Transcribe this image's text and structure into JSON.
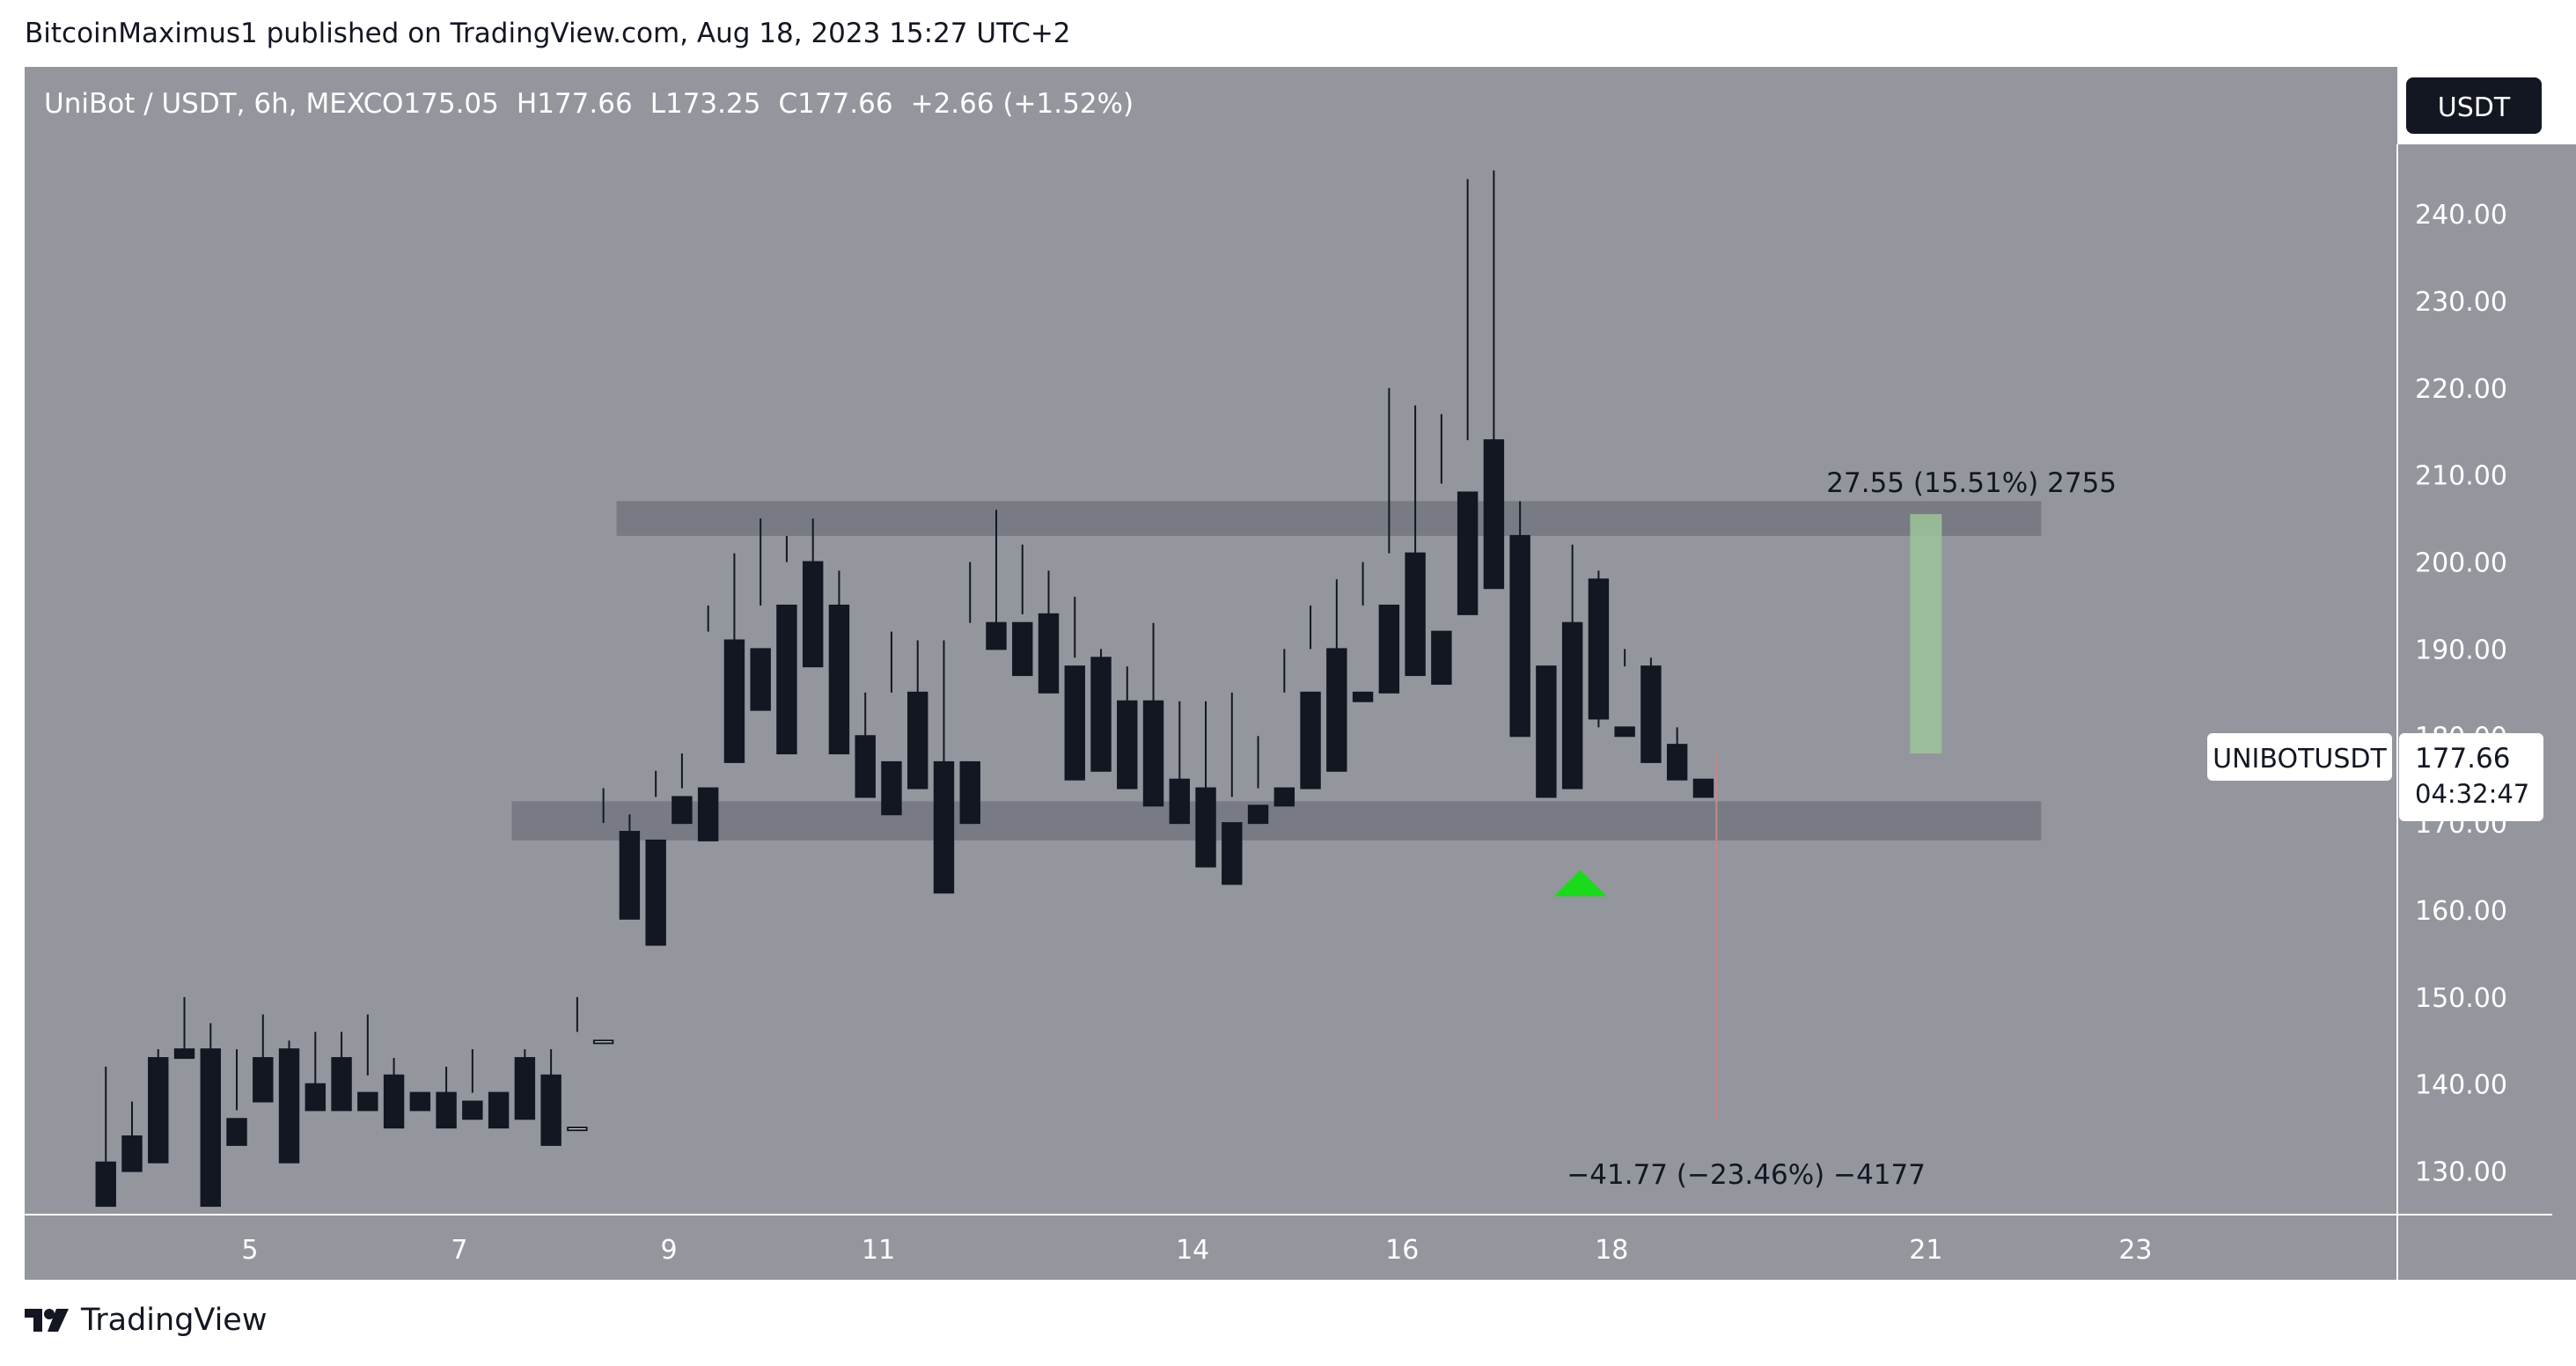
{
  "header": {
    "published_by": "BitcoinMaximus1 published on TradingView.com, Aug 18, 2023 15:27 UTC+2"
  },
  "legend": {
    "symbol": "UniBot / USDT, 6h, MEXC",
    "o_label": "O",
    "o_value": "175.05",
    "h_label": "H",
    "h_value": "177.66",
    "l_label": "L",
    "l_value": "173.25",
    "c_label": "C",
    "c_value": "177.66",
    "change": "+2.66 (+1.52%)"
  },
  "currency_button": "USDT",
  "price_tag": {
    "symbol": "UNIBOTUSDT",
    "price": "177.66",
    "countdown": "04:32:47"
  },
  "footer": {
    "brand": "TradingView",
    "logo_icon": "tradingview-logo-icon"
  },
  "colors": {
    "plot_bg": "#94969e",
    "axis_bg": "#ffffff",
    "bull": "#ffffff",
    "bear": "#131722",
    "zone": "#6f727a",
    "up_arrow": "#1bd91b",
    "target_bar": "#9ec49a",
    "stop_line": "#c9868a"
  },
  "chart_data": {
    "type": "candlestick",
    "title": "UniBot / USDT, 6h, MEXC",
    "ylim": [
      125,
      248
    ],
    "y_ticks": [
      "130.00",
      "140.00",
      "150.00",
      "160.00",
      "170.00",
      "180.00",
      "190.00",
      "200.00",
      "210.00",
      "220.00",
      "230.00",
      "240.00"
    ],
    "x_ticks": [
      {
        "label": "5",
        "day": 5
      },
      {
        "label": "7",
        "day": 7
      },
      {
        "label": "9",
        "day": 9
      },
      {
        "label": "11",
        "day": 11
      },
      {
        "label": "14",
        "day": 14
      },
      {
        "label": "16",
        "day": 16
      },
      {
        "label": "18",
        "day": 18
      },
      {
        "label": "21",
        "day": 21
      },
      {
        "label": "23",
        "day": 23
      }
    ],
    "start_day": 3.625,
    "period_days": 0.25,
    "candles": [
      [
        131,
        142,
        127,
        126
      ],
      [
        134,
        138,
        131,
        130
      ],
      [
        143,
        144,
        133,
        131
      ],
      [
        144,
        150,
        144,
        143
      ],
      [
        144,
        147,
        136,
        126
      ],
      [
        136,
        144,
        137,
        133
      ],
      [
        143,
        148,
        143,
        138
      ],
      [
        144,
        145,
        140,
        131
      ],
      [
        140,
        146,
        139,
        137
      ],
      [
        143,
        146,
        139,
        137
      ],
      [
        139,
        148,
        141,
        137
      ],
      [
        141,
        143,
        139,
        135
      ],
      [
        139,
        141,
        141,
        137
      ],
      [
        139,
        142,
        139,
        135
      ],
      [
        138,
        144,
        139,
        136
      ],
      [
        139,
        143,
        143,
        135
      ],
      [
        143,
        144,
        141,
        136
      ],
      [
        141,
        144,
        135,
        133
      ],
      [
        135,
        150,
        146,
        135
      ],
      [
        145,
        174,
        170,
        145
      ],
      [
        169,
        171,
        168,
        159
      ],
      [
        168,
        176,
        173,
        156
      ],
      [
        173,
        178,
        174,
        170
      ],
      [
        174,
        195,
        192,
        168
      ],
      [
        191,
        201,
        190,
        177
      ],
      [
        190,
        205,
        195,
        183
      ],
      [
        195,
        203,
        200,
        178
      ],
      [
        200,
        205,
        195,
        188
      ],
      [
        195,
        199,
        180,
        178
      ],
      [
        180,
        185,
        177,
        173
      ],
      [
        177,
        192,
        185,
        171
      ],
      [
        185,
        191,
        178,
        174
      ],
      [
        177,
        191,
        176,
        162
      ],
      [
        177,
        200,
        193,
        170
      ],
      [
        193,
        206,
        193,
        190
      ],
      [
        193,
        202,
        194,
        187
      ],
      [
        194,
        199,
        188,
        185
      ],
      [
        188,
        196,
        189,
        175
      ],
      [
        189,
        190,
        184,
        176
      ],
      [
        184,
        188,
        184,
        174
      ],
      [
        184,
        193,
        175,
        172
      ],
      [
        175,
        184,
        174,
        170
      ],
      [
        174,
        184,
        169,
        165
      ],
      [
        170,
        185,
        173,
        163
      ],
      [
        172,
        180,
        174,
        170
      ],
      [
        174,
        190,
        185,
        172
      ],
      [
        185,
        195,
        190,
        174
      ],
      [
        190,
        198,
        186,
        176
      ],
      [
        185,
        200,
        195,
        184
      ],
      [
        195,
        220,
        201,
        185
      ],
      [
        201,
        218,
        192,
        187
      ],
      [
        192,
        217,
        209,
        186
      ],
      [
        208,
        244,
        214,
        194
      ],
      [
        214,
        245,
        203,
        197
      ],
      [
        203,
        207,
        188,
        180
      ],
      [
        188,
        192,
        192,
        173
      ],
      [
        193,
        202,
        189,
        174
      ],
      [
        198,
        199,
        181,
        182
      ],
      [
        181,
        190,
        188,
        180
      ],
      [
        188,
        189,
        179,
        177
      ],
      [
        179,
        181,
        175,
        175
      ],
      [
        175,
        177,
        177,
        173
      ]
    ],
    "zones": [
      {
        "from_day": 8.5,
        "to_day": 22.1,
        "low": 203,
        "high": 207
      },
      {
        "from_day": 7.5,
        "to_day": 22.1,
        "low": 168,
        "high": 172.5
      }
    ],
    "markers": [
      {
        "type": "arrow-up",
        "day": 17.7,
        "price": 163
      }
    ],
    "measure": {
      "day": 19.0,
      "upper_label": "27.55 (15.51%) 2755",
      "lower_label": "−41.77 (−23.46%) −4177",
      "upper_price": 205.2,
      "lower_price": 136,
      "base_price": 178
    },
    "target_bar": {
      "day": 21.0,
      "low": 178,
      "high": 205.5
    }
  }
}
